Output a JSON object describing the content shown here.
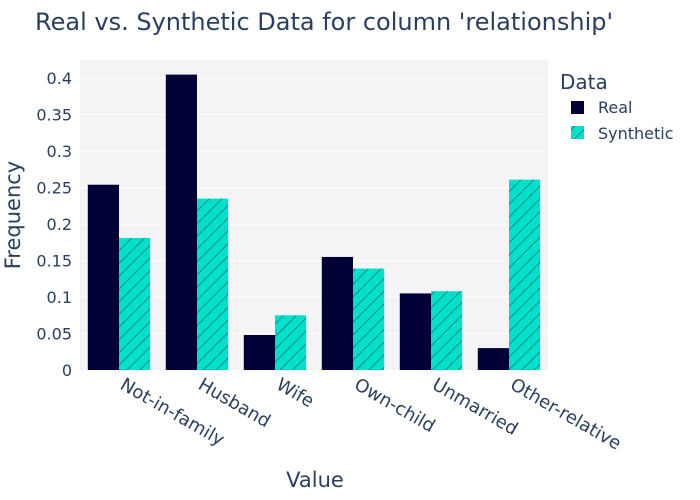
{
  "chart_data": {
    "type": "bar",
    "title": "Real vs. Synthetic Data for column 'relationship'",
    "xlabel": "Value",
    "ylabel": "Frequency",
    "categories": [
      "Not-in-family",
      "Husband",
      "Wife",
      "Own-child",
      "Unmarried",
      "Other-relative"
    ],
    "series": [
      {
        "name": "Real",
        "values": [
          0.254,
          0.405,
          0.048,
          0.155,
          0.105,
          0.03
        ],
        "color": "#000036",
        "pattern": "none"
      },
      {
        "name": "Synthetic",
        "values": [
          0.181,
          0.235,
          0.075,
          0.139,
          0.108,
          0.261
        ],
        "color": "#01e0c9",
        "pattern": "diagonal-hatch"
      }
    ],
    "ylim": [
      0,
      0.425
    ],
    "yticks": [
      0,
      0.05,
      0.1,
      0.15,
      0.2,
      0.25,
      0.3,
      0.35,
      0.4
    ],
    "ytick_labels": [
      "0",
      "0.05",
      "0.1",
      "0.15",
      "0.2",
      "0.25",
      "0.3",
      "0.35",
      "0.4"
    ],
    "legend": {
      "title": "Data",
      "placement": "top-right-outside"
    },
    "grid": true,
    "plot_background": "#f4f4f7"
  }
}
